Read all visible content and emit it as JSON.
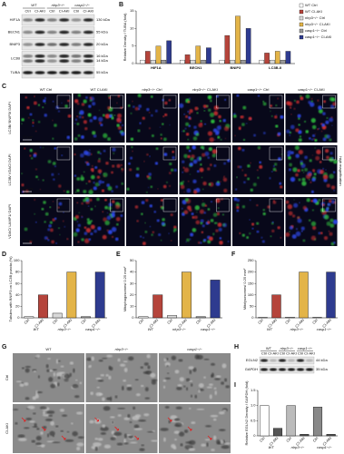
{
  "panel_labels": [
    "A",
    "B",
    "C",
    "D",
    "E",
    "F",
    "G",
    "H",
    "I"
  ],
  "blot_a": {
    "groups": [
      "WT",
      "nlrp3−/−",
      "casp1−/−"
    ],
    "lanes": [
      "Ctrl",
      "CI-AKI",
      "Ctrl",
      "CI-AKI",
      "Ctrl",
      "CI-AKI"
    ],
    "bands": [
      {
        "name": "HIF1A",
        "sizes": [
          "130 kDa"
        ]
      },
      {
        "name": "BECN1",
        "sizes": [
          "55 kDa"
        ]
      },
      {
        "name": "BNIP3",
        "sizes": [
          "20 kDa"
        ]
      },
      {
        "name": "LC3B",
        "sizes": [
          "16 kDa",
          "14 kDa"
        ]
      },
      {
        "name": "TUBA",
        "sizes": [
          "55 kDa"
        ]
      }
    ]
  },
  "micrographs_c": {
    "columns": [
      "WT Ctrl",
      "WT CI-AKI",
      "nlrp3−/− Ctrl",
      "nlrp3−/− CI-AKI",
      "casp1−/− Ctrl",
      "casp1−/− CI-AKI"
    ],
    "rows": [
      "LC3B/ BNIP3/ DAPI",
      "LC3B/ VDAC/ DAPI",
      "VDAC/ LAMP1/ DAPI"
    ],
    "scale": "20 μm",
    "side_note": "high magnification"
  },
  "micrographs_g": {
    "columns": [
      "WT",
      "nlrp3−/−",
      "casp1−/−"
    ],
    "rows": [
      "Ctrl",
      "CI-AKI"
    ]
  },
  "blot_h": {
    "groups": [
      "WT",
      "nlrp3−/−",
      "casp1−/−"
    ],
    "lanes": [
      "Ctrl",
      "CI-AKI",
      "Ctrl",
      "CI-AKI",
      "Ctrl",
      "CI-AKI"
    ],
    "bands": [
      {
        "name": "EGLN2",
        "size": "44 kDa"
      },
      {
        "name": "GAPDH",
        "size": "35 kDa"
      }
    ]
  },
  "chart_data": [
    {
      "type": "grouped-bar",
      "ylabel": "Relative Density / TUBA (fold)",
      "categories": [
        "HIF1A",
        "BECN1",
        "BNIP3",
        "LC3B-II"
      ],
      "ylim": [
        0,
        15
      ],
      "yticks": [
        0,
        5,
        10,
        15
      ],
      "series": [
        {
          "name": "WT Ctrl",
          "color": "#ffffff",
          "values": [
            1,
            1,
            1,
            1
          ]
        },
        {
          "name": "WT CI-AKI",
          "color": "#b5443b",
          "values": [
            3.5,
            2.5,
            8,
            3
          ]
        },
        {
          "name": "nlrp3−/− Ctrl",
          "color": "#d9d9d9",
          "values": [
            1,
            1,
            1,
            1
          ]
        },
        {
          "name": "nlrp3−/− CI-AKI",
          "color": "#e3b448",
          "values": [
            5,
            5,
            13.5,
            3.5
          ]
        },
        {
          "name": "casp1−/− Ctrl",
          "color": "#9a9a9a",
          "values": [
            1,
            1,
            1,
            1
          ]
        },
        {
          "name": "casp1−/− CI-AKI",
          "color": "#2e3b8f",
          "values": [
            6.5,
            4.5,
            10,
            3.5
          ]
        }
      ]
    },
    {
      "type": "bar",
      "ylabel": "Tubules with BNIP3 on LC3B puncta (%)",
      "categories": [
        "Ctrl",
        "CI-AKI",
        "Ctrl",
        "CI-AKI",
        "Ctrl",
        "CI-AKI"
      ],
      "groups": [
        "WT",
        "nlrp3−/−",
        "casp1−/−"
      ],
      "values": [
        2,
        40,
        8,
        80,
        2,
        80
      ],
      "colors": [
        "#ffffff",
        "#b5443b",
        "#d9d9d9",
        "#e3b448",
        "#9a9a9a",
        "#2e3b8f"
      ],
      "ylim": [
        0,
        100
      ],
      "yticks": [
        0,
        20,
        40,
        60,
        80,
        100
      ]
    },
    {
      "type": "bar",
      "ylabel": "Mitophagosomes/ 0.25 mm²",
      "categories": [
        "Ctrl",
        "CI-AKI",
        "Ctrl",
        "CI-AKI",
        "Ctrl",
        "CI-AKI"
      ],
      "groups": [
        "WT",
        "nlrp3−/−",
        "casp1−/−"
      ],
      "values": [
        1,
        20,
        2,
        40,
        1,
        33
      ],
      "colors": [
        "#ffffff",
        "#b5443b",
        "#d9d9d9",
        "#e3b448",
        "#9a9a9a",
        "#2e3b8f"
      ],
      "ylim": [
        0,
        50
      ],
      "yticks": [
        0,
        10,
        20,
        30,
        40,
        50
      ]
    },
    {
      "type": "bar",
      "ylabel": "Mitolysosomes/ 0.25 mm²",
      "categories": [
        "Ctrl",
        "CI-AKI",
        "Ctrl",
        "CI-AKI",
        "Ctrl",
        "CI-AKI"
      ],
      "groups": [
        "WT",
        "nlrp3−/−",
        "casp1−/−"
      ],
      "values": [
        2,
        100,
        3,
        200,
        2,
        200
      ],
      "colors": [
        "#ffffff",
        "#b5443b",
        "#d9d9d9",
        "#e3b448",
        "#9a9a9a",
        "#2e3b8f"
      ],
      "ylim": [
        0,
        250
      ],
      "yticks": [
        0,
        50,
        100,
        150,
        200,
        250
      ]
    },
    {
      "type": "bar",
      "ylabel": "Relative EGLN2 Density / GAPDH (fold)",
      "categories": [
        "Ctrl",
        "CI-AKI",
        "Ctrl",
        "CI-AKI",
        "Ctrl",
        "CI-AKI"
      ],
      "groups": [
        "WT",
        "nlrp3−/−",
        "casp1−/−"
      ],
      "values": [
        1,
        0.25,
        1,
        0.05,
        0.95,
        0.05
      ],
      "colors": [
        "#ffffff",
        "#555555",
        "#bbbbbb",
        "#555555",
        "#888888",
        "#555555"
      ],
      "ylim": [
        0,
        1.5
      ],
      "yticks": [
        0,
        0.5,
        {
          "value": 1,
          "label": "1.0"
        },
        1.5
      ]
    }
  ]
}
